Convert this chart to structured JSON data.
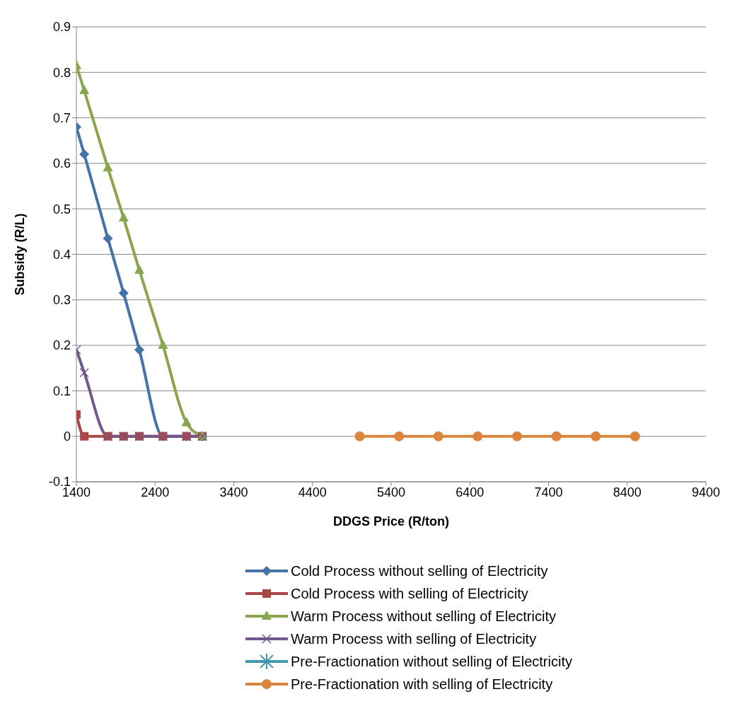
{
  "chart_data": {
    "type": "line",
    "xlabel": "DDGS Price (R/ton)",
    "ylabel": "Subsidy (R/L)",
    "xlim": [
      1400,
      9400
    ],
    "xticks": [
      1400,
      2400,
      3400,
      4400,
      5400,
      6400,
      7400,
      8400,
      9400
    ],
    "ylim": [
      -0.1,
      0.9
    ],
    "yticks": [
      -0.1,
      0,
      0.1,
      0.2,
      0.3,
      0.4,
      0.5,
      0.6,
      0.7,
      0.8,
      0.9
    ],
    "grid": "y",
    "legend": "bottom",
    "line_style": "solid",
    "series": [
      {
        "name": "Cold Process without selling of Electricity",
        "color": "#4572a7",
        "marker": "diamond",
        "x": [
          1400,
          1500,
          1800,
          2000,
          2200,
          2500,
          2800,
          3000
        ],
        "values": [
          0.68,
          0.62,
          0.435,
          0.315,
          0.19,
          0,
          0,
          0
        ]
      },
      {
        "name": "Cold Process with selling of Electricity",
        "color": "#aa4643",
        "marker": "square",
        "x": [
          1400,
          1500,
          1800,
          2000,
          2200,
          2500,
          2800,
          3000
        ],
        "values": [
          0.048,
          0,
          0,
          0,
          0,
          0,
          0,
          0
        ]
      },
      {
        "name": "Warm Process without selling of Electricity",
        "color": "#89a54e",
        "marker": "triangle",
        "x": [
          1400,
          1500,
          1800,
          2000,
          2200,
          2500,
          2800,
          3000
        ],
        "values": [
          0.815,
          0.76,
          0.59,
          0.48,
          0.365,
          0.2,
          0.03,
          0
        ]
      },
      {
        "name": "Warm Process with selling of Electricity",
        "color": "#71588f",
        "marker": "cross",
        "x": [
          1400,
          1500,
          1800,
          2000,
          2200,
          2500,
          2800,
          3000
        ],
        "values": [
          0.19,
          0.14,
          0,
          0,
          0,
          0,
          0,
          0
        ]
      },
      {
        "name": "Pre-Fractionation without selling of Electricity",
        "color": "#4198af",
        "marker": "star"
      },
      {
        "name": "Pre-Fractionation with selling of Electricity",
        "color": "#db843d",
        "marker": "circle",
        "x": [
          5000,
          5500,
          6000,
          6500,
          7000,
          7500,
          8000,
          8500
        ],
        "values": [
          0,
          0,
          0,
          0,
          0,
          0,
          0,
          0
        ]
      }
    ]
  }
}
